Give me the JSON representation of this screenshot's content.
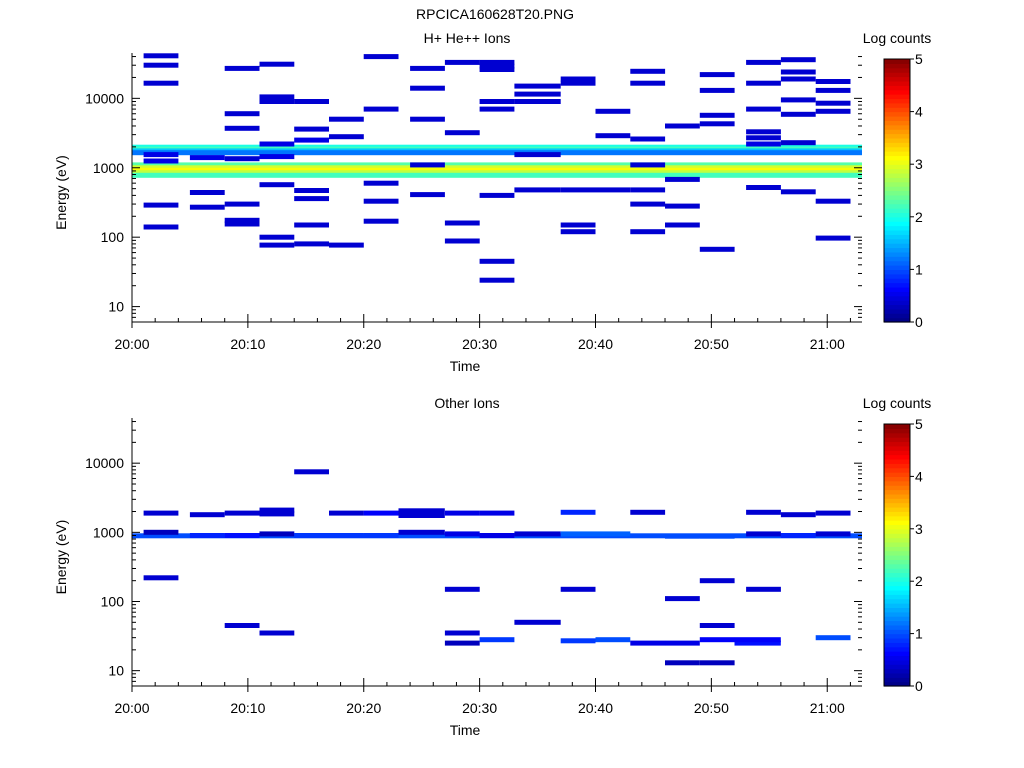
{
  "figure_title": "RPCICA160628T20.PNG",
  "chart_data": [
    {
      "type": "heatmap",
      "title": "H+ He++ Ions",
      "xlabel": "Time",
      "ylabel": "Energy (eV)",
      "y_scale": "log",
      "xlim": [
        "20:00",
        "21:03"
      ],
      "ylim": [
        6,
        45000
      ],
      "x_ticks": [
        "20:00",
        "20:10",
        "20:20",
        "20:30",
        "20:40",
        "20:50",
        "21:00"
      ],
      "y_ticks": [
        "10",
        "100",
        "1000",
        "10000"
      ],
      "colorbar": {
        "label": "Log counts",
        "range": [
          0,
          5
        ],
        "ticks": [
          "0",
          "1",
          "2",
          "3",
          "4",
          "5"
        ],
        "colormap": "jet"
      },
      "grid": false,
      "cells": [
        [
          "20:00",
          "21:03",
          1980,
          2.0
        ],
        [
          "20:00",
          "21:03",
          1850,
          2.2
        ],
        [
          "20:00",
          "21:03",
          1750,
          1.6
        ],
        [
          "20:00",
          "21:03",
          1650,
          1.2
        ],
        [
          "20:00",
          "21:03",
          1100,
          2.3
        ],
        [
          "20:00",
          "21:03",
          1000,
          2.9
        ],
        [
          "20:00",
          "21:03",
          920,
          3.1
        ],
        [
          "20:00",
          "21:03",
          850,
          2.8
        ],
        [
          "20:00",
          "21:03",
          780,
          2.2
        ],
        [
          "20:01",
          "20:04",
          41000,
          0.4
        ],
        [
          "20:01",
          "20:04",
          30000,
          0.4
        ],
        [
          "20:01",
          "20:04",
          16500,
          0.4
        ],
        [
          "20:01",
          "20:04",
          1550,
          0.5
        ],
        [
          "20:01",
          "20:04",
          1250,
          0.5
        ],
        [
          "20:01",
          "20:04",
          290,
          0.4
        ],
        [
          "20:01",
          "20:04",
          140,
          0.4
        ],
        [
          "20:05",
          "20:08",
          1400,
          0.5
        ],
        [
          "20:05",
          "20:08",
          440,
          0.4
        ],
        [
          "20:05",
          "20:08",
          270,
          0.4
        ],
        [
          "20:08",
          "20:11",
          27000,
          0.4
        ],
        [
          "20:08",
          "20:11",
          6000,
          0.4
        ],
        [
          "20:08",
          "20:11",
          3700,
          0.4
        ],
        [
          "20:08",
          "20:11",
          1350,
          0.4
        ],
        [
          "20:08",
          "20:11",
          175,
          0.4
        ],
        [
          "20:08",
          "20:11",
          155,
          0.4
        ],
        [
          "20:08",
          "20:11",
          300,
          0.4
        ],
        [
          "20:11",
          "20:14",
          31000,
          0.4
        ],
        [
          "20:11",
          "20:14",
          10500,
          0.4
        ],
        [
          "20:11",
          "20:14",
          9000,
          0.4
        ],
        [
          "20:11",
          "20:14",
          2200,
          0.5
        ],
        [
          "20:11",
          "20:14",
          1450,
          0.5
        ],
        [
          "20:11",
          "20:14",
          570,
          0.4
        ],
        [
          "20:11",
          "20:14",
          100,
          0.4
        ],
        [
          "20:11",
          "20:14",
          77,
          0.4
        ],
        [
          "20:14",
          "20:17",
          9000,
          0.4
        ],
        [
          "20:14",
          "20:17",
          3600,
          0.4
        ],
        [
          "20:14",
          "20:17",
          2500,
          0.5
        ],
        [
          "20:14",
          "20:17",
          470,
          0.4
        ],
        [
          "20:14",
          "20:17",
          360,
          0.4
        ],
        [
          "20:14",
          "20:17",
          150,
          0.4
        ],
        [
          "20:14",
          "20:17",
          80,
          0.4
        ],
        [
          "20:17",
          "20:20",
          5000,
          0.4
        ],
        [
          "20:17",
          "20:20",
          2800,
          0.4
        ],
        [
          "20:17",
          "20:20",
          77,
          0.4
        ],
        [
          "20:20",
          "20:23",
          40000,
          0.4
        ],
        [
          "20:20",
          "20:23",
          7000,
          0.4
        ],
        [
          "20:20",
          "20:23",
          600,
          0.4
        ],
        [
          "20:20",
          "20:23",
          330,
          0.4
        ],
        [
          "20:20",
          "20:23",
          170,
          0.4
        ],
        [
          "20:24",
          "20:27",
          27000,
          0.4
        ],
        [
          "20:24",
          "20:27",
          14000,
          0.4
        ],
        [
          "20:24",
          "20:27",
          5000,
          0.4
        ],
        [
          "20:24",
          "20:27",
          1100,
          0.4
        ],
        [
          "20:24",
          "20:27",
          410,
          0.4
        ],
        [
          "20:27",
          "20:30",
          33000,
          0.4
        ],
        [
          "20:27",
          "20:30",
          3200,
          0.4
        ],
        [
          "20:27",
          "20:30",
          160,
          0.4
        ],
        [
          "20:27",
          "20:30",
          88,
          0.4
        ],
        [
          "20:30",
          "20:33",
          33000,
          0.4
        ],
        [
          "20:30",
          "20:33",
          29000,
          0.4
        ],
        [
          "20:30",
          "20:33",
          26000,
          0.4
        ],
        [
          "20:30",
          "20:33",
          9000,
          0.4
        ],
        [
          "20:30",
          "20:33",
          7000,
          0.4
        ],
        [
          "20:30",
          "20:33",
          400,
          0.4
        ],
        [
          "20:30",
          "20:33",
          45,
          0.4
        ],
        [
          "20:30",
          "20:33",
          24,
          0.4
        ],
        [
          "20:33",
          "20:37",
          15000,
          0.4
        ],
        [
          "20:33",
          "20:37",
          11500,
          0.4
        ],
        [
          "20:33",
          "20:37",
          9000,
          0.4
        ],
        [
          "20:33",
          "20:37",
          1550,
          0.4
        ],
        [
          "20:33",
          "20:37",
          480,
          0.4
        ],
        [
          "20:37",
          "20:40",
          19000,
          0.4
        ],
        [
          "20:37",
          "20:40",
          16500,
          0.4
        ],
        [
          "20:37",
          "20:40",
          480,
          0.4
        ],
        [
          "20:37",
          "20:40",
          150,
          0.4
        ],
        [
          "20:37",
          "20:40",
          120,
          0.4
        ],
        [
          "20:40",
          "20:43",
          6500,
          0.4
        ],
        [
          "20:40",
          "20:43",
          2900,
          0.4
        ],
        [
          "20:40",
          "20:43",
          480,
          0.4
        ],
        [
          "20:43",
          "20:46",
          24500,
          0.4
        ],
        [
          "20:43",
          "20:46",
          16500,
          0.4
        ],
        [
          "20:43",
          "20:46",
          2600,
          0.4
        ],
        [
          "20:43",
          "20:46",
          1100,
          0.4
        ],
        [
          "20:43",
          "20:46",
          480,
          0.4
        ],
        [
          "20:43",
          "20:46",
          300,
          0.4
        ],
        [
          "20:43",
          "20:46",
          120,
          0.4
        ],
        [
          "20:46",
          "20:49",
          4000,
          0.4
        ],
        [
          "20:46",
          "20:49",
          680,
          0.4
        ],
        [
          "20:46",
          "20:49",
          280,
          0.4
        ],
        [
          "20:46",
          "20:49",
          150,
          0.4
        ],
        [
          "20:49",
          "20:52",
          22000,
          0.4
        ],
        [
          "20:49",
          "20:52",
          13000,
          0.4
        ],
        [
          "20:49",
          "20:52",
          5700,
          0.4
        ],
        [
          "20:49",
          "20:52",
          4300,
          0.4
        ],
        [
          "20:49",
          "20:52",
          67,
          0.4
        ],
        [
          "20:53",
          "20:56",
          33000,
          0.4
        ],
        [
          "20:53",
          "20:56",
          16500,
          0.4
        ],
        [
          "20:53",
          "20:56",
          7000,
          0.4
        ],
        [
          "20:53",
          "20:56",
          3300,
          0.4
        ],
        [
          "20:53",
          "20:56",
          2700,
          0.4
        ],
        [
          "20:53",
          "20:56",
          2200,
          0.5
        ],
        [
          "20:53",
          "20:56",
          520,
          0.4
        ],
        [
          "20:56",
          "20:59",
          36000,
          0.4
        ],
        [
          "20:56",
          "20:59",
          24000,
          0.4
        ],
        [
          "20:56",
          "20:59",
          19000,
          0.4
        ],
        [
          "20:56",
          "20:59",
          9500,
          0.4
        ],
        [
          "20:56",
          "20:59",
          5900,
          0.4
        ],
        [
          "20:56",
          "20:59",
          2300,
          0.4
        ],
        [
          "20:56",
          "20:59",
          450,
          0.4
        ],
        [
          "20:59",
          "21:02",
          17500,
          0.4
        ],
        [
          "20:59",
          "21:02",
          13000,
          0.4
        ],
        [
          "20:59",
          "21:02",
          8500,
          0.4
        ],
        [
          "20:59",
          "21:02",
          6500,
          0.4
        ],
        [
          "20:59",
          "21:02",
          330,
          0.4
        ],
        [
          "20:59",
          "21:02",
          97,
          0.4
        ]
      ]
    },
    {
      "type": "heatmap",
      "title": "Other Ions",
      "xlabel": "Time",
      "ylabel": "Energy (eV)",
      "y_scale": "log",
      "xlim": [
        "20:00",
        "21:03"
      ],
      "ylim": [
        6,
        45000
      ],
      "x_ticks": [
        "20:00",
        "20:10",
        "20:20",
        "20:30",
        "20:40",
        "20:50",
        "21:00"
      ],
      "y_ticks": [
        "10",
        "100",
        "1000",
        "10000"
      ],
      "colorbar": {
        "label": "Log counts",
        "range": [
          0,
          5
        ],
        "ticks": [
          "0",
          "1",
          "2",
          "3",
          "4",
          "5"
        ],
        "colormap": "jet"
      },
      "grid": false,
      "cells": [
        [
          "20:00",
          "21:03",
          890,
          1.0
        ],
        [
          "20:01",
          "20:04",
          1000,
          0.3
        ],
        [
          "20:01",
          "20:04",
          1900,
          0.4
        ],
        [
          "20:01",
          "20:04",
          220,
          0.4
        ],
        [
          "20:05",
          "20:08",
          1800,
          0.4
        ],
        [
          "20:05",
          "20:08",
          900,
          0.8
        ],
        [
          "20:08",
          "20:11",
          1900,
          0.4
        ],
        [
          "20:08",
          "20:11",
          900,
          0.7
        ],
        [
          "20:08",
          "20:11",
          45,
          0.4
        ],
        [
          "20:11",
          "20:14",
          2100,
          0.4
        ],
        [
          "20:11",
          "20:14",
          1850,
          0.4
        ],
        [
          "20:11",
          "20:14",
          950,
          0.3
        ],
        [
          "20:11",
          "20:14",
          35,
          0.4
        ],
        [
          "20:14",
          "20:17",
          900,
          0.9
        ],
        [
          "20:14",
          "20:17",
          7500,
          0.4
        ],
        [
          "20:17",
          "20:20",
          1900,
          0.4
        ],
        [
          "20:17",
          "20:20",
          900,
          0.9
        ],
        [
          "20:20",
          "20:23",
          1900,
          0.6
        ],
        [
          "20:20",
          "20:23",
          900,
          0.9
        ],
        [
          "20:23",
          "20:27",
          2050,
          0.4
        ],
        [
          "20:23",
          "20:27",
          1750,
          0.4
        ],
        [
          "20:23",
          "20:27",
          1000,
          0.4
        ],
        [
          "20:27",
          "20:30",
          1900,
          0.5
        ],
        [
          "20:27",
          "20:30",
          950,
          0.5
        ],
        [
          "20:27",
          "20:30",
          150,
          0.4
        ],
        [
          "20:27",
          "20:30",
          35,
          0.4
        ],
        [
          "20:27",
          "20:30",
          25,
          0.3
        ],
        [
          "20:30",
          "20:33",
          1900,
          0.5
        ],
        [
          "20:30",
          "20:33",
          900,
          0.5
        ],
        [
          "20:30",
          "20:33",
          28,
          0.9
        ],
        [
          "20:33",
          "20:37",
          950,
          0.4
        ],
        [
          "20:33",
          "20:37",
          50,
          0.4
        ],
        [
          "20:37",
          "20:40",
          1950,
          0.8
        ],
        [
          "20:37",
          "20:40",
          950,
          1.1
        ],
        [
          "20:37",
          "20:40",
          150,
          0.4
        ],
        [
          "20:37",
          "20:40",
          27,
          0.9
        ],
        [
          "20:40",
          "20:43",
          950,
          1.1
        ],
        [
          "20:40",
          "20:43",
          28,
          1.0
        ],
        [
          "20:43",
          "20:46",
          1950,
          0.4
        ],
        [
          "20:43",
          "20:46",
          25,
          0.5
        ],
        [
          "20:46",
          "20:49",
          880,
          1.0
        ],
        [
          "20:46",
          "20:49",
          110,
          0.4
        ],
        [
          "20:46",
          "20:49",
          25,
          0.5
        ],
        [
          "20:46",
          "20:49",
          13,
          0.3
        ],
        [
          "20:49",
          "20:52",
          880,
          1.0
        ],
        [
          "20:49",
          "20:52",
          200,
          0.4
        ],
        [
          "20:49",
          "20:52",
          45,
          0.4
        ],
        [
          "20:49",
          "20:52",
          28,
          0.6
        ],
        [
          "20:49",
          "20:52",
          13,
          0.3
        ],
        [
          "20:52",
          "20:56",
          25,
          0.7
        ],
        [
          "20:52",
          "20:56",
          28,
          0.6
        ],
        [
          "20:53",
          "20:56",
          1950,
          0.4
        ],
        [
          "20:53",
          "20:56",
          950,
          0.4
        ],
        [
          "20:53",
          "20:56",
          150,
          0.4
        ],
        [
          "20:56",
          "20:59",
          1800,
          0.4
        ],
        [
          "20:56",
          "20:59",
          900,
          0.8
        ],
        [
          "20:59",
          "21:02",
          1900,
          0.4
        ],
        [
          "20:59",
          "21:02",
          950,
          0.4
        ],
        [
          "20:59",
          "21:02",
          30,
          1.0
        ]
      ]
    }
  ]
}
